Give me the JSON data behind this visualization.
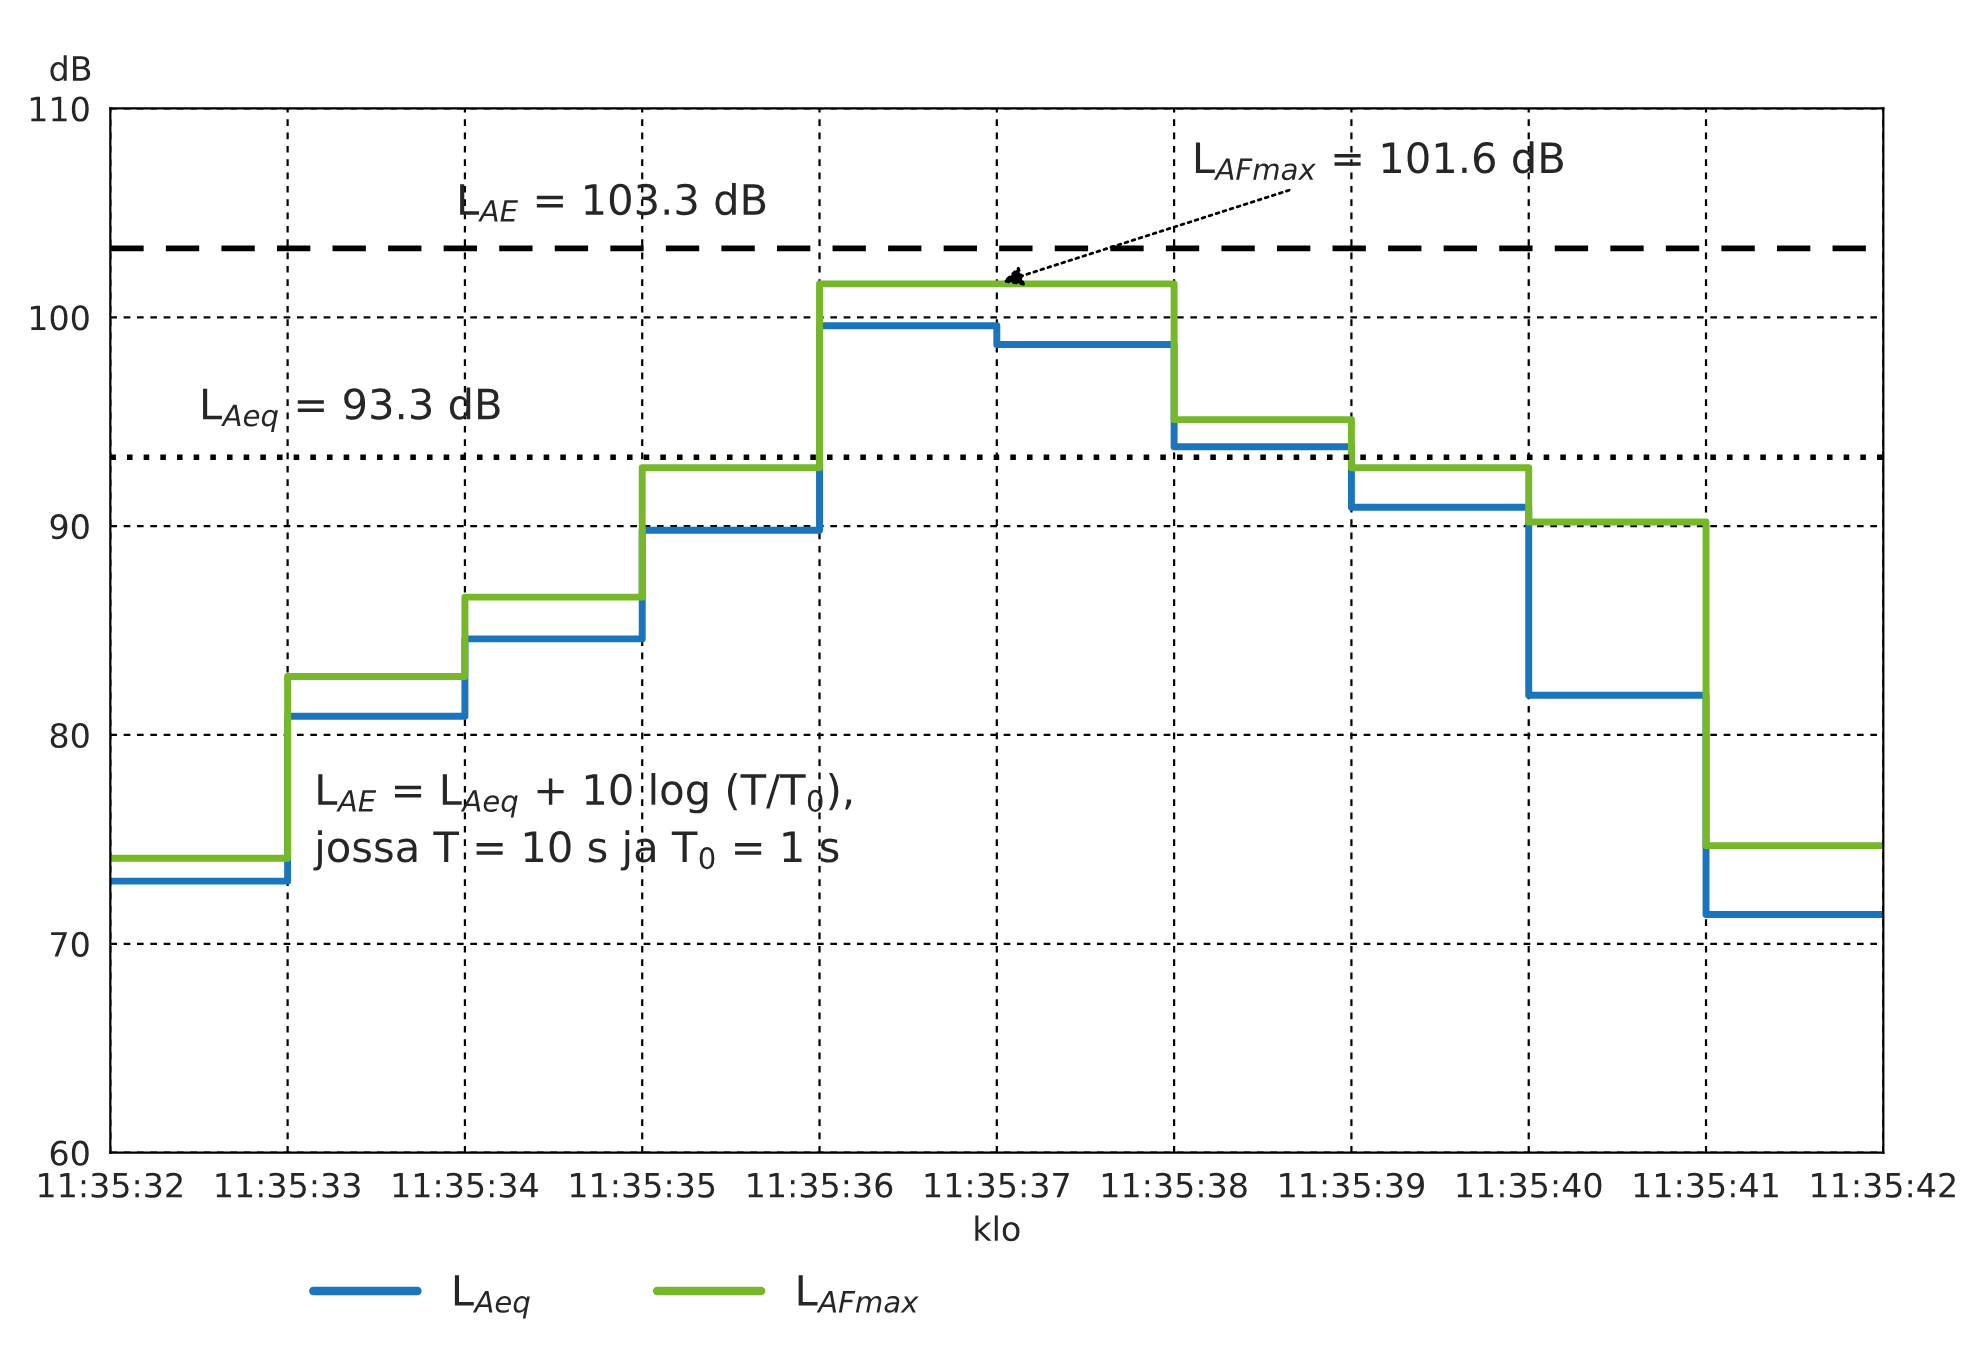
{
  "chart_data": {
    "type": "step",
    "categories": [
      "11:35:32",
      "11:35:33",
      "11:35:34",
      "11:35:35",
      "11:35:36",
      "11:35:37",
      "11:35:38",
      "11:35:39",
      "11:35:40",
      "11:35:41",
      "11:35:42"
    ],
    "series": [
      {
        "name": "L$_{Aeq}$",
        "color": "#1b75bc",
        "values": [
          73.0,
          80.9,
          84.6,
          89.8,
          99.6,
          98.7,
          93.8,
          90.9,
          81.9,
          71.4,
          71.4
        ]
      },
      {
        "name": "L$_{AFmax}$",
        "color": "#77b82a",
        "values": [
          74.1,
          82.8,
          86.6,
          92.8,
          101.6,
          101.6,
          95.1,
          92.8,
          90.2,
          74.7,
          74.7
        ]
      }
    ],
    "ylim": [
      60,
      110
    ],
    "yticks": [
      60,
      70,
      80,
      90,
      100,
      110
    ],
    "ylabel": "dB",
    "xlabel": "klo",
    "ref_lines": [
      {
        "axis": "y",
        "value": 103.3,
        "label": "L$_{AE}$ = 103.3 dB",
        "color": "#000000",
        "line_style": "dashed"
      },
      {
        "axis": "y",
        "value": 93.3,
        "label": "L$_{Aeq}$ = 93.3 dB",
        "color": "#000000",
        "line_style": "dotted"
      }
    ],
    "annotations": [
      {
        "text": "L$_{AFmax}$ = 101.6 dB",
        "x": "11:35:37",
        "y": 101.6
      },
      "L$_{AE}$ = L$_{Aeq}$ + 10 log (T/T$_{0}$),\njossa T = 10 s ja T$_{0}$ = 1 s"
    ],
    "grid": true,
    "legend": "bottom"
  }
}
